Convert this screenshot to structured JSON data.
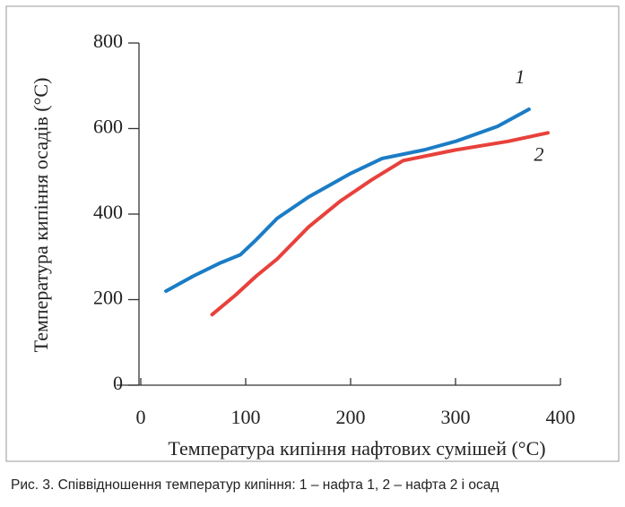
{
  "chart_data": {
    "type": "line",
    "x_label": "Температура кипіння нафтових сумішей (°C)",
    "y_label": "Температура кипіння осадів (°C)",
    "caption": "Рис. 3. Співвідношення температур кипіння: 1 – нафта 1, 2 – нафта 2 і осад",
    "xlim": [
      0,
      400
    ],
    "xticks": [
      0,
      100,
      200,
      300,
      400
    ],
    "ylim": [
      0,
      800
    ],
    "yticks": [
      0,
      200,
      400,
      600,
      800
    ],
    "series": [
      {
        "name": "1",
        "color": "#1b7cc6",
        "x": [
          24,
          50,
          75,
          95,
          110,
          130,
          160,
          200,
          230,
          270,
          300,
          340,
          370
        ],
        "values": [
          220,
          255,
          285,
          305,
          340,
          390,
          440,
          495,
          530,
          550,
          570,
          605,
          645
        ]
      },
      {
        "name": "2",
        "color": "#e8413b",
        "x": [
          68,
          90,
          110,
          130,
          160,
          190,
          220,
          250,
          300,
          350,
          388
        ],
        "values": [
          165,
          210,
          255,
          295,
          370,
          430,
          480,
          525,
          550,
          570,
          590
        ]
      }
    ]
  }
}
